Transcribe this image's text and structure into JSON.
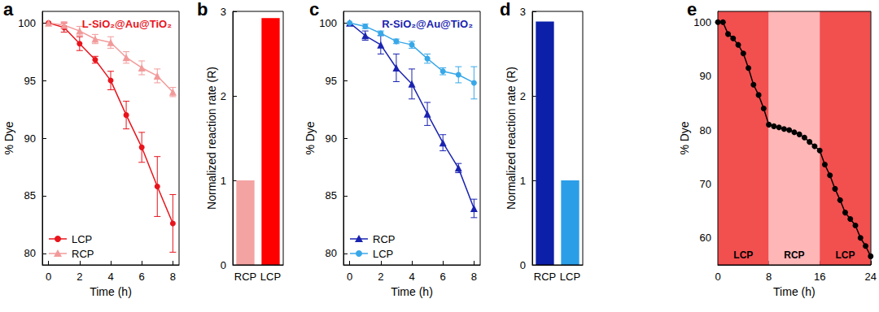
{
  "chart_data": [
    {
      "panel": "a",
      "type": "line",
      "title": "L-SiO₂@Au@TiO₂",
      "color": "#e8141c",
      "x_label": "Time (h)",
      "y_label": "% Dye",
      "x": [
        0,
        1,
        2,
        3,
        4,
        5,
        6,
        7,
        8
      ],
      "series": [
        {
          "name": "LCP",
          "color": "#e8141c",
          "marker": "circle",
          "values": [
            100,
            99.6,
            98.2,
            96.8,
            95.0,
            92.0,
            89.2,
            85.8,
            82.6
          ],
          "errors": [
            0,
            0.4,
            0.6,
            0.3,
            0.8,
            1.2,
            1.3,
            2.6,
            2.5
          ]
        },
        {
          "name": "RCP",
          "color": "#f29a9a",
          "marker": "triangle",
          "values": [
            100,
            99.8,
            99.3,
            98.6,
            98.3,
            97.0,
            96.1,
            95.4,
            94.0
          ],
          "errors": [
            0,
            0.3,
            0.4,
            0.4,
            0.5,
            0.5,
            0.6,
            0.6,
            0.4
          ]
        }
      ],
      "xlim": [
        -0.4,
        8.4
      ],
      "xticks": [
        0,
        2,
        4,
        6,
        8
      ],
      "ylim": [
        79,
        101
      ],
      "yticks": [
        80,
        85,
        90,
        95,
        100
      ],
      "legend": "lower left",
      "grid": false
    },
    {
      "panel": "b",
      "type": "bar",
      "y_label": "Normalized reaction rate (R)",
      "categories": [
        "RCP",
        "LCP"
      ],
      "values": [
        1,
        2.92
      ],
      "colors": [
        "#f4a3a3",
        "#ff0000"
      ],
      "ylim": [
        0,
        3
      ],
      "yticks": [
        0,
        1,
        2,
        3
      ],
      "grid": false
    },
    {
      "panel": "c",
      "type": "line",
      "title": "R-SiO₂@Au@TiO₂",
      "color": "#1a23b0",
      "x_label": "Time (h)",
      "y_label": "% Dye",
      "x": [
        0,
        1,
        2,
        3,
        4,
        5,
        6,
        7,
        8
      ],
      "series": [
        {
          "name": "RCP",
          "color": "#1a23b0",
          "marker": "triangle",
          "values": [
            100,
            98.9,
            98.1,
            96.1,
            94.7,
            92.1,
            89.6,
            87.4,
            83.9
          ],
          "errors": [
            0,
            0.4,
            0.8,
            1.2,
            1.3,
            1.0,
            0.7,
            0.4,
            0.8
          ]
        },
        {
          "name": "LCP",
          "color": "#38a8e8",
          "marker": "circle",
          "values": [
            100,
            99.7,
            99.1,
            98.4,
            98.1,
            96.9,
            95.8,
            95.5,
            94.8
          ],
          "errors": [
            0,
            0.2,
            0.2,
            0.2,
            0.3,
            0.4,
            0.3,
            0.7,
            1.4
          ]
        }
      ],
      "xlim": [
        -0.4,
        8.4
      ],
      "xticks": [
        0,
        2,
        4,
        6,
        8
      ],
      "ylim": [
        79,
        101
      ],
      "yticks": [
        80,
        85,
        90,
        95,
        100
      ],
      "legend": "lower left",
      "grid": false
    },
    {
      "panel": "d",
      "type": "bar",
      "y_label": "Normalized reaction rate (R)",
      "categories": [
        "RCP",
        "LCP"
      ],
      "values": [
        2.88,
        1
      ],
      "colors": [
        "#0b1fa8",
        "#2b9ee8"
      ],
      "ylim": [
        0,
        3
      ],
      "yticks": [
        0,
        1,
        2,
        3
      ],
      "grid": false
    },
    {
      "panel": "e",
      "type": "line",
      "x_label": "Time (h)",
      "y_label": "% Dye",
      "color": "#000000",
      "marker": "circle",
      "x": [
        0,
        0.8,
        1.6,
        2.4,
        3.2,
        4,
        4.8,
        5.6,
        6.4,
        7.2,
        8,
        8.8,
        9.6,
        10.4,
        11.2,
        12,
        12.8,
        13.6,
        14.4,
        15.2,
        16,
        16.8,
        17.6,
        18.4,
        19.2,
        20,
        20.8,
        21.6,
        22.4,
        23.2,
        24
      ],
      "values": [
        100,
        100,
        97.8,
        97.0,
        95.8,
        94.2,
        91.5,
        88.4,
        86.5,
        84.0,
        81.0,
        80.7,
        80.5,
        80.2,
        80.0,
        79.6,
        79.2,
        78.6,
        77.8,
        77.0,
        76.2,
        73.6,
        71.6,
        69.1,
        67.0,
        64.7,
        63.5,
        62.3,
        60.0,
        58.5,
        56.6
      ],
      "regions": [
        {
          "start": 0,
          "end": 8,
          "label": "LCP",
          "color": "#f24f4f"
        },
        {
          "start": 8,
          "end": 16,
          "label": "RCP",
          "color": "#ffb6b6"
        },
        {
          "start": 16,
          "end": 24,
          "label": "LCP",
          "color": "#f24f4f"
        }
      ],
      "xlim": [
        0,
        24
      ],
      "xticks": [
        0,
        8,
        16,
        24
      ],
      "ylim": [
        55,
        102
      ],
      "yticks": [
        60,
        70,
        80,
        90,
        100
      ],
      "grid": false
    }
  ]
}
